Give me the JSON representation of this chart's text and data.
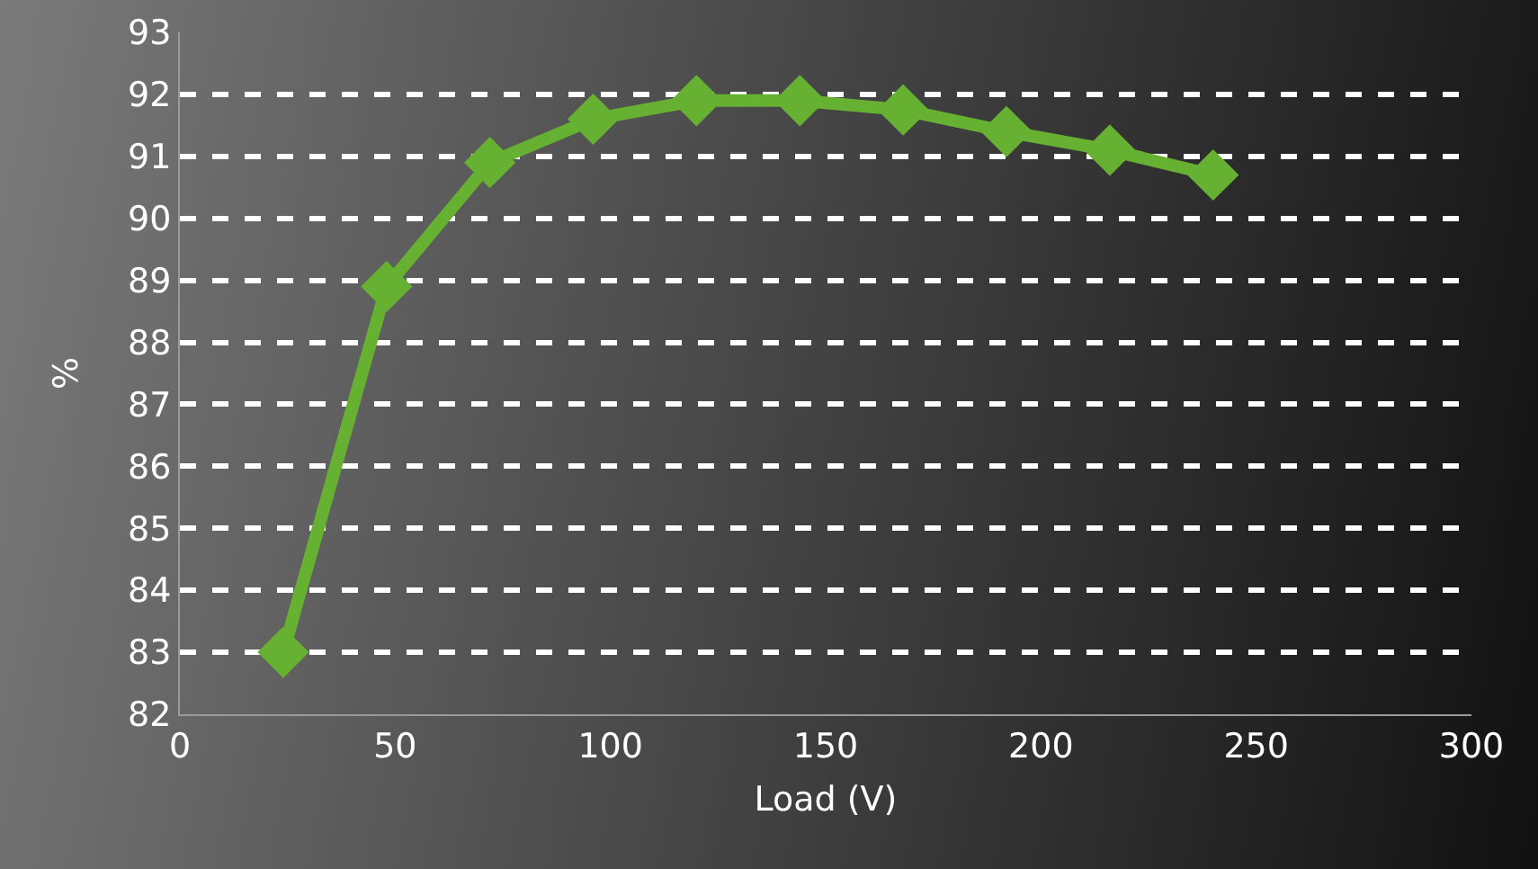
{
  "chart_data": {
    "type": "line",
    "xlabel": "Load (V)",
    "ylabel": "%",
    "x": [
      24,
      48,
      72,
      96,
      120,
      144,
      168,
      192,
      216,
      240
    ],
    "series": [
      {
        "color": "#66b032",
        "values": [
          83.0,
          88.9,
          90.9,
          91.6,
          91.9,
          91.9,
          91.75,
          91.4,
          91.1,
          90.7
        ]
      }
    ],
    "xlim": [
      0,
      300
    ],
    "xticks": [
      0,
      50,
      100,
      150,
      200,
      250,
      300
    ],
    "ylim": [
      82,
      93
    ],
    "yticks": [
      82,
      83,
      84,
      85,
      86,
      87,
      88,
      89,
      90,
      91,
      92,
      93
    ],
    "grid": "y",
    "marker": "diamond",
    "line_style": "solid"
  }
}
